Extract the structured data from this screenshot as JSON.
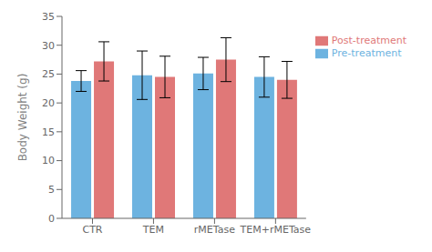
{
  "chart_data": {
    "type": "bar",
    "categories": [
      "CTR",
      "TEM",
      "rMETase",
      "TEM+rMETase"
    ],
    "series": [
      {
        "name": "Pre-treatment",
        "color": "#6db3e0",
        "values": [
          23.8,
          24.8,
          25.1,
          24.5
        ],
        "errors": [
          1.8,
          4.2,
          2.8,
          3.5
        ]
      },
      {
        "name": "Post-treatment",
        "color": "#e07878",
        "values": [
          27.2,
          24.5,
          27.5,
          24.0
        ],
        "errors": [
          3.4,
          3.6,
          3.8,
          3.2
        ]
      }
    ],
    "ylabel": "Body Weight (g)",
    "ylim": [
      0,
      35
    ],
    "yticks": [
      0,
      5,
      10,
      15,
      20,
      25,
      30,
      35
    ],
    "grid": false,
    "legend": "right"
  }
}
